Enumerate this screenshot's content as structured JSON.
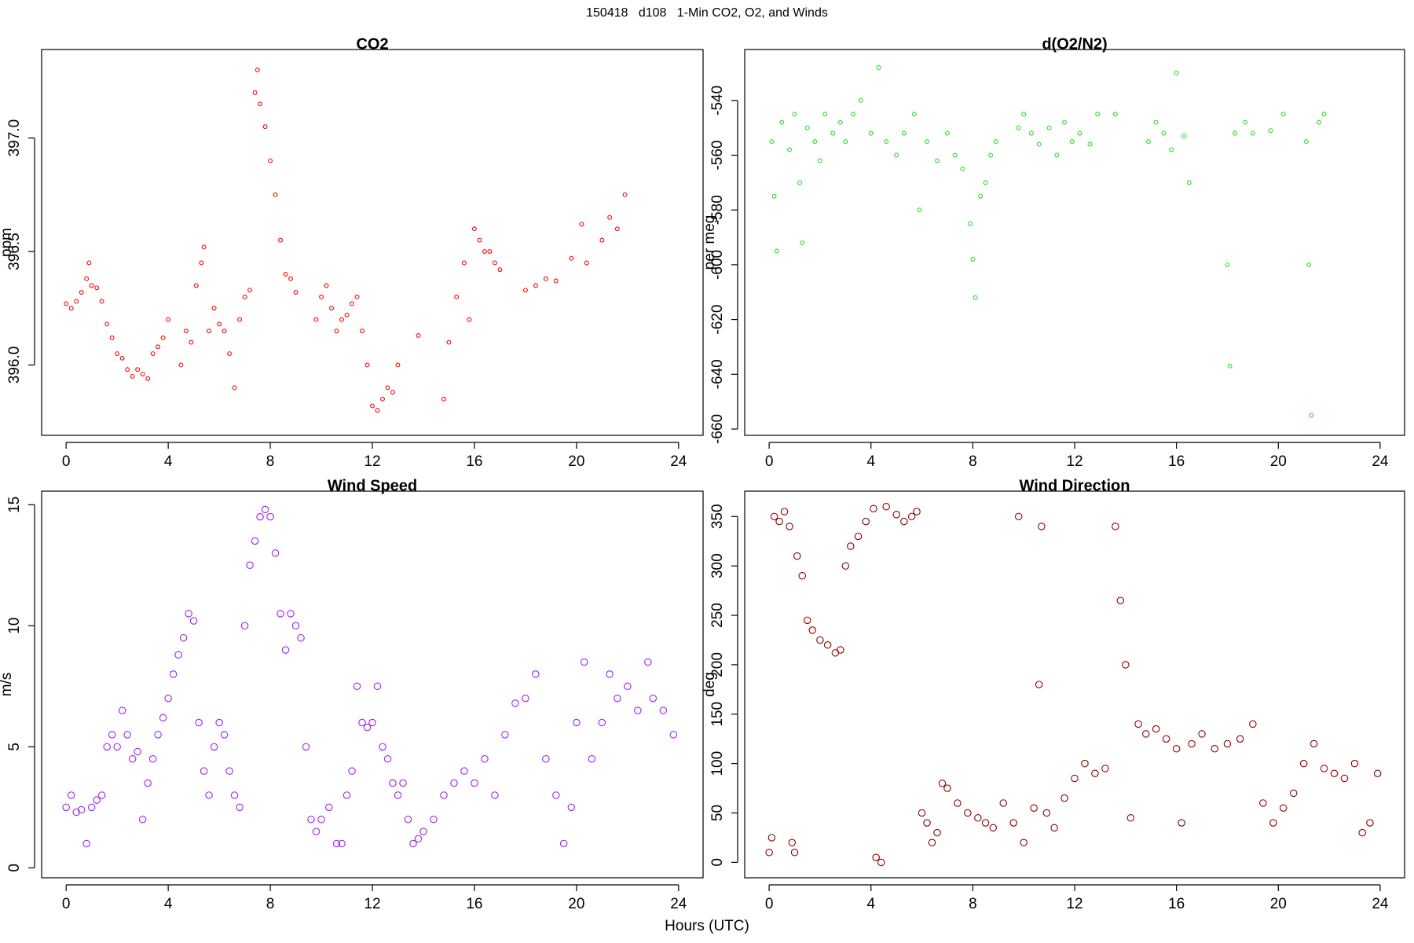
{
  "title": "150418   d108   1-Min CO2, O2, and Winds",
  "xlabel": "Hours (UTC)",
  "chart_data": [
    {
      "type": "scatter",
      "title": "CO2",
      "ylabel": "ppm",
      "color": "#ff0000",
      "xlim": [
        -0.96,
        24.96
      ],
      "xticks": [
        0,
        4,
        8,
        12,
        16,
        20,
        24
      ],
      "ylim": [
        395.69,
        397.39
      ],
      "yticks": [
        {
          "value": 396,
          "label": "396.0"
        },
        {
          "value": 396.5,
          "label": "396.5"
        },
        {
          "value": 397,
          "label": "397.0"
        }
      ],
      "x": [
        0.0,
        0.2,
        0.4,
        0.6,
        0.8,
        0.9,
        1.0,
        1.2,
        1.4,
        1.6,
        1.8,
        2.0,
        2.2,
        2.4,
        2.6,
        2.8,
        3.0,
        3.2,
        3.4,
        3.6,
        3.8,
        4.0,
        4.5,
        4.7,
        4.9,
        5.1,
        5.3,
        5.4,
        5.6,
        5.8,
        6.0,
        6.2,
        6.4,
        6.6,
        6.8,
        7.0,
        7.2,
        7.4,
        7.5,
        7.6,
        7.8,
        8.0,
        8.2,
        8.4,
        8.6,
        8.8,
        9.0,
        9.8,
        10.0,
        10.2,
        10.4,
        10.6,
        10.8,
        11.0,
        11.2,
        11.4,
        11.6,
        11.8,
        12.0,
        12.2,
        12.4,
        12.6,
        12.8,
        13.0,
        13.8,
        14.8,
        15.0,
        15.3,
        15.6,
        15.8,
        16.0,
        16.2,
        16.4,
        16.6,
        16.8,
        17.0,
        18.0,
        18.4,
        18.8,
        19.2,
        19.8,
        20.2,
        20.4,
        21.0,
        21.3,
        21.6,
        21.9
      ],
      "values": [
        396.27,
        396.25,
        396.28,
        396.32,
        396.38,
        396.45,
        396.35,
        396.34,
        396.28,
        396.18,
        396.12,
        396.05,
        396.03,
        395.98,
        395.95,
        395.98,
        395.96,
        395.94,
        396.05,
        396.08,
        396.12,
        396.2,
        396.0,
        396.15,
        396.1,
        396.35,
        396.45,
        396.52,
        396.15,
        396.25,
        396.18,
        396.15,
        396.05,
        395.9,
        396.2,
        396.3,
        396.33,
        397.2,
        397.3,
        397.15,
        397.05,
        396.9,
        396.75,
        396.55,
        396.4,
        396.38,
        396.32,
        396.2,
        396.3,
        396.35,
        396.25,
        396.15,
        396.2,
        396.22,
        396.27,
        396.3,
        396.15,
        396.0,
        395.82,
        395.8,
        395.85,
        395.9,
        395.88,
        396.0,
        396.13,
        395.85,
        396.1,
        396.3,
        396.45,
        396.2,
        396.6,
        396.55,
        396.5,
        396.5,
        396.45,
        396.42,
        396.33,
        396.35,
        396.38,
        396.37,
        396.47,
        396.62,
        396.45,
        396.55,
        396.65,
        396.6,
        396.75
      ]
    },
    {
      "type": "scatter",
      "title": "d(O2/N2)",
      "ylabel": "per meg",
      "color": "#22e022",
      "xlim": [
        -0.96,
        24.96
      ],
      "xticks": [
        0,
        4,
        8,
        12,
        16,
        20,
        24
      ],
      "ylim": [
        -662.3,
        -521.4
      ],
      "yticks": [
        -660,
        -640,
        -620,
        -600,
        -580,
        -560,
        -540
      ],
      "x": [
        0.1,
        0.2,
        0.3,
        0.5,
        0.8,
        1.0,
        1.2,
        1.3,
        1.5,
        1.8,
        2.0,
        2.2,
        2.5,
        2.8,
        3.0,
        3.3,
        3.6,
        4.0,
        4.3,
        4.6,
        5.0,
        5.3,
        5.7,
        5.9,
        6.2,
        6.6,
        7.0,
        7.3,
        7.6,
        7.9,
        8.0,
        8.1,
        8.3,
        8.5,
        8.7,
        8.9,
        9.8,
        10.0,
        10.3,
        10.6,
        11.0,
        11.3,
        11.6,
        11.9,
        12.2,
        12.6,
        12.9,
        13.6,
        14.9,
        15.2,
        15.5,
        15.8,
        16.0,
        16.3,
        16.5,
        18.0,
        18.1,
        18.3,
        18.7,
        19.0,
        19.7,
        20.2,
        21.1,
        21.2,
        21.3,
        21.6,
        21.8
      ],
      "values": [
        -555,
        -575,
        -595,
        -548,
        -558,
        -545,
        -570,
        -592,
        -550,
        -555,
        -562,
        -545,
        -552,
        -548,
        -555,
        -545,
        -540,
        -552,
        -528,
        -555,
        -560,
        -552,
        -545,
        -580,
        -555,
        -562,
        -552,
        -560,
        -565,
        -585,
        -598,
        -612,
        -575,
        -570,
        -560,
        -555,
        -550,
        -545,
        -552,
        -556,
        -550,
        -560,
        -548,
        -555,
        -552,
        -556,
        -545,
        -545,
        -555,
        -548,
        -552,
        -558,
        -530,
        -553,
        -570,
        -600,
        -637,
        -552,
        -548,
        -552,
        -551,
        -545,
        -555,
        -600,
        -655,
        -548,
        -545
      ]
    },
    {
      "type": "scatter",
      "title": "Wind Speed",
      "ylabel": "m/s",
      "color": "#a020f0",
      "xlim": [
        -0.96,
        24.96
      ],
      "xticks": [
        0,
        4,
        8,
        12,
        16,
        20,
        24
      ],
      "ylim": [
        -0.41,
        15.56
      ],
      "yticks": [
        0,
        5,
        10,
        15
      ],
      "x": [
        0,
        0.2,
        0.4,
        0.6,
        0.8,
        1.0,
        1.2,
        1.4,
        1.6,
        1.8,
        2.0,
        2.2,
        2.4,
        2.6,
        2.8,
        3.0,
        3.2,
        3.4,
        3.6,
        3.8,
        4.0,
        4.2,
        4.4,
        4.6,
        4.8,
        5.0,
        5.2,
        5.4,
        5.6,
        5.8,
        6.0,
        6.2,
        6.4,
        6.6,
        6.8,
        7.0,
        7.2,
        7.4,
        7.6,
        7.8,
        8.0,
        8.2,
        8.4,
        8.6,
        8.8,
        9.0,
        9.2,
        9.4,
        9.6,
        9.8,
        10.0,
        10.3,
        10.6,
        10.8,
        11.0,
        11.2,
        11.4,
        11.6,
        11.8,
        12.0,
        12.2,
        12.4,
        12.6,
        12.8,
        13.0,
        13.2,
        13.4,
        13.6,
        13.8,
        14.0,
        14.4,
        14.8,
        15.2,
        15.6,
        16.0,
        16.4,
        16.8,
        17.2,
        17.6,
        18.0,
        18.4,
        18.8,
        19.2,
        19.5,
        19.8,
        20.0,
        20.3,
        20.6,
        21.0,
        21.3,
        21.6,
        22.0,
        22.4,
        22.8,
        23.0,
        23.4,
        23.8
      ],
      "values": [
        2.5,
        3.0,
        2.3,
        2.4,
        1.0,
        2.5,
        2.8,
        3.0,
        5.0,
        5.5,
        5.0,
        6.5,
        5.5,
        4.5,
        4.8,
        2.0,
        3.5,
        4.5,
        5.5,
        6.2,
        7.0,
        8.0,
        8.8,
        9.5,
        10.5,
        10.2,
        6.0,
        4.0,
        3.0,
        5.0,
        6.0,
        5.5,
        4.0,
        3.0,
        2.5,
        10.0,
        12.5,
        13.5,
        14.5,
        14.8,
        14.5,
        13.0,
        10.5,
        9.0,
        10.5,
        10.0,
        9.5,
        5.0,
        2.0,
        1.5,
        2.0,
        2.5,
        1.0,
        1.0,
        3.0,
        4.0,
        7.5,
        6.0,
        5.8,
        6.0,
        7.5,
        5.0,
        4.5,
        3.5,
        3.0,
        3.5,
        2.0,
        1.0,
        1.2,
        1.5,
        2.0,
        3.0,
        3.5,
        4.0,
        3.5,
        4.5,
        3.0,
        5.5,
        6.8,
        7.0,
        8.0,
        4.5,
        3.0,
        1.0,
        2.5,
        6.0,
        8.5,
        4.5,
        6.0,
        8.0,
        7.0,
        7.5,
        6.5,
        8.5,
        7.0,
        6.5,
        5.5
      ]
    },
    {
      "type": "scatter",
      "title": "Wind Direction",
      "ylabel": "deg",
      "color": "#8b0000",
      "xlim": [
        -0.96,
        24.96
      ],
      "xticks": [
        0,
        4,
        8,
        12,
        16,
        20,
        24
      ],
      "ylim": [
        -15.6,
        375.7
      ],
      "yticks": [
        0,
        50,
        100,
        150,
        200,
        250,
        300,
        350
      ],
      "x": [
        0,
        0.1,
        0.2,
        0.4,
        0.6,
        0.8,
        0.9,
        1.0,
        1.1,
        1.3,
        1.5,
        1.7,
        2.0,
        2.3,
        2.6,
        2.8,
        3.0,
        3.2,
        3.5,
        3.8,
        4.1,
        4.2,
        4.4,
        4.6,
        5.0,
        5.3,
        5.6,
        5.8,
        6.0,
        6.2,
        6.4,
        6.6,
        6.8,
        7.0,
        7.4,
        7.8,
        8.2,
        8.5,
        8.8,
        9.2,
        9.6,
        9.8,
        10.0,
        10.4,
        10.6,
        10.7,
        10.9,
        11.2,
        11.6,
        12.0,
        12.4,
        12.8,
        13.2,
        13.6,
        13.8,
        14.0,
        14.2,
        14.5,
        14.8,
        15.2,
        15.6,
        16.0,
        16.2,
        16.6,
        17.0,
        17.5,
        18.0,
        18.5,
        19.0,
        19.4,
        19.8,
        20.2,
        20.6,
        21.0,
        21.4,
        21.8,
        22.2,
        22.6,
        23.0,
        23.3,
        23.6,
        23.9
      ],
      "values": [
        10,
        25,
        350,
        345,
        355,
        340,
        20,
        10,
        310,
        290,
        245,
        235,
        225,
        220,
        212,
        215,
        300,
        320,
        330,
        345,
        358,
        5,
        0,
        360,
        352,
        345,
        350,
        355,
        50,
        40,
        20,
        30,
        80,
        75,
        60,
        50,
        45,
        40,
        35,
        60,
        40,
        350,
        20,
        55,
        180,
        340,
        50,
        35,
        65,
        85,
        100,
        90,
        95,
        340,
        265,
        200,
        45,
        140,
        130,
        135,
        125,
        115,
        40,
        120,
        130,
        115,
        120,
        125,
        140,
        60,
        40,
        55,
        70,
        100,
        120,
        95,
        90,
        85,
        100,
        30,
        40,
        90
      ]
    }
  ]
}
